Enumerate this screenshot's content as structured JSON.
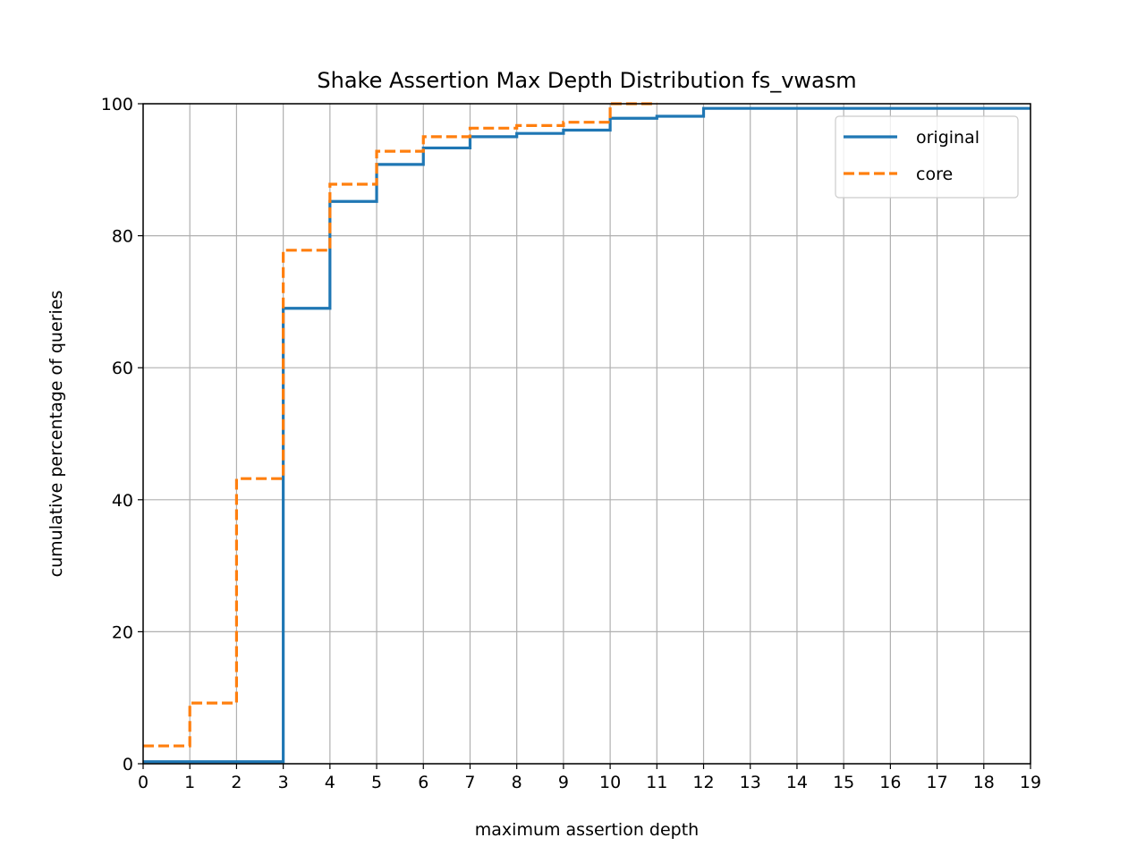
{
  "chart_data": {
    "type": "line",
    "title": "Shake Assertion Max Depth Distribution fs_vwasm",
    "xlabel": "maximum assertion depth",
    "ylabel": "cumulative percentage of queries",
    "xlim": [
      0,
      19
    ],
    "ylim": [
      0,
      100
    ],
    "xticks": [
      0,
      1,
      2,
      3,
      4,
      5,
      6,
      7,
      8,
      9,
      10,
      11,
      12,
      13,
      14,
      15,
      16,
      17,
      18,
      19
    ],
    "yticks": [
      0,
      20,
      40,
      60,
      80,
      100
    ],
    "grid": true,
    "legend_position": "upper right",
    "step": "post",
    "series": [
      {
        "name": "original",
        "color": "#1f77b4",
        "linestyle": "solid",
        "x": [
          0,
          1,
          2,
          3,
          4,
          5,
          6,
          7,
          8,
          9,
          10,
          11,
          12,
          19
        ],
        "y": [
          0.3,
          0.3,
          0.3,
          69.0,
          85.2,
          90.8,
          93.3,
          95.0,
          95.5,
          96.0,
          97.8,
          98.1,
          99.3,
          99.3
        ]
      },
      {
        "name": "core",
        "color": "#ff7f0e",
        "linestyle": "dashed",
        "x": [
          0,
          1,
          2,
          3,
          4,
          5,
          6,
          7,
          8,
          9,
          10,
          11
        ],
        "y": [
          2.7,
          9.2,
          43.2,
          77.8,
          87.8,
          92.8,
          95.0,
          96.3,
          96.7,
          97.2,
          100.0,
          100.0
        ]
      }
    ]
  }
}
